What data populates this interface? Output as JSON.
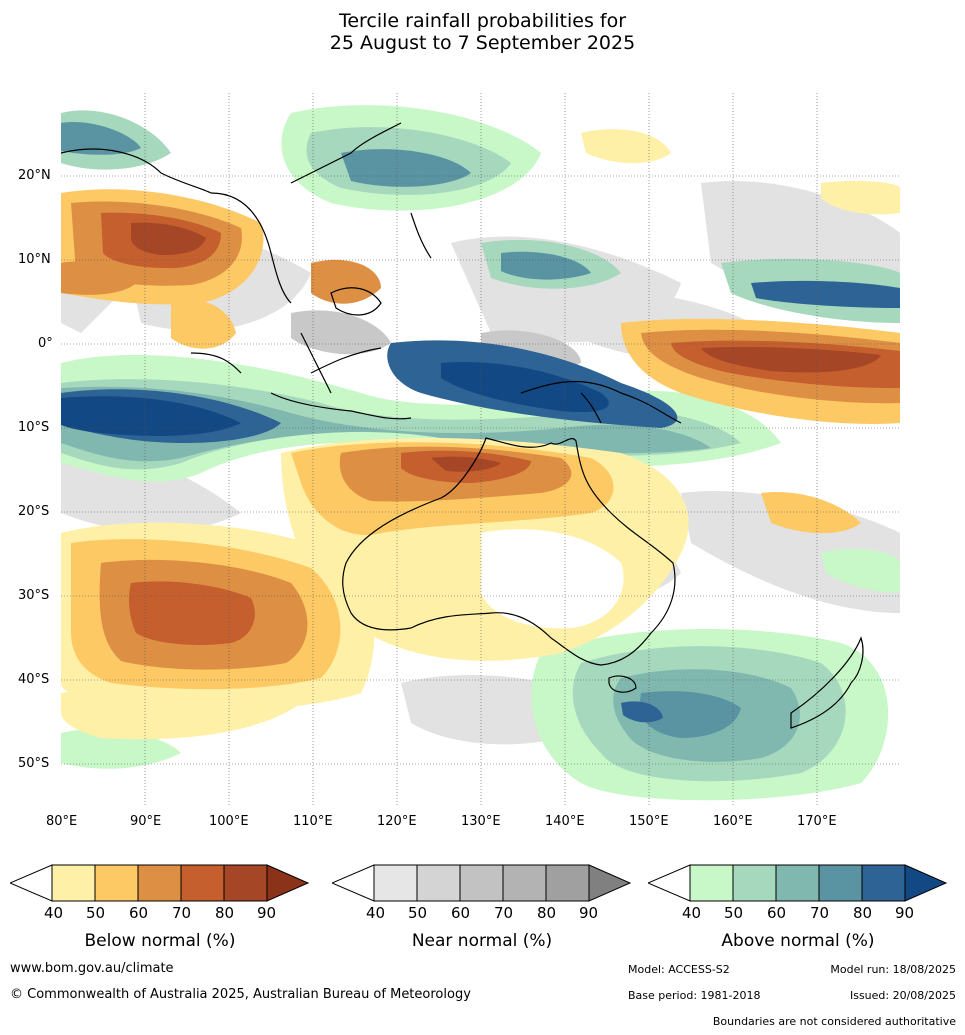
{
  "title": {
    "line1": "Tercile rainfall probabilities for",
    "line2": "25 August to 7 September 2025"
  },
  "map": {
    "lat_labels": [
      "20°N",
      "10°N",
      "0°",
      "10°S",
      "20°S",
      "30°S",
      "40°S",
      "50°S"
    ],
    "lon_labels": [
      "80°E",
      "90°E",
      "100°E",
      "110°E",
      "120°E",
      "130°E",
      "140°E",
      "150°E",
      "160°E",
      "170°E"
    ],
    "gridlines": "dotted"
  },
  "legend": {
    "ticks": [
      "40",
      "50",
      "60",
      "70",
      "80",
      "90"
    ],
    "below": {
      "title": "Below normal (%)",
      "colors": [
        "#fff0a8",
        "#fdc964",
        "#dd9043",
        "#c55f2e",
        "#a54626",
        "#8a3318"
      ]
    },
    "near": {
      "title": "Near normal (%)",
      "colors": [
        "#e6e6e6",
        "#d4d4d4",
        "#c2c2c2",
        "#b3b3b3",
        "#a0a0a0",
        "#808080"
      ]
    },
    "above": {
      "title": "Above normal (%)",
      "colors": [
        "#c8f7c8",
        "#a5d8bd",
        "#80b8b0",
        "#5a94a3",
        "#2e6395",
        "#124984"
      ]
    }
  },
  "footer": {
    "website": "www.bom.gov.au/climate",
    "copyright": "© Commonwealth of Australia 2025, Australian Bureau of Meteorology",
    "model": "Model: ACCESS-S2",
    "model_run": "Model run: 18/08/2025",
    "base_period": "Base period: 1981-2018",
    "issued": "Issued: 20/08/2025",
    "disclaimer": "Boundaries are not considered authoritative"
  }
}
